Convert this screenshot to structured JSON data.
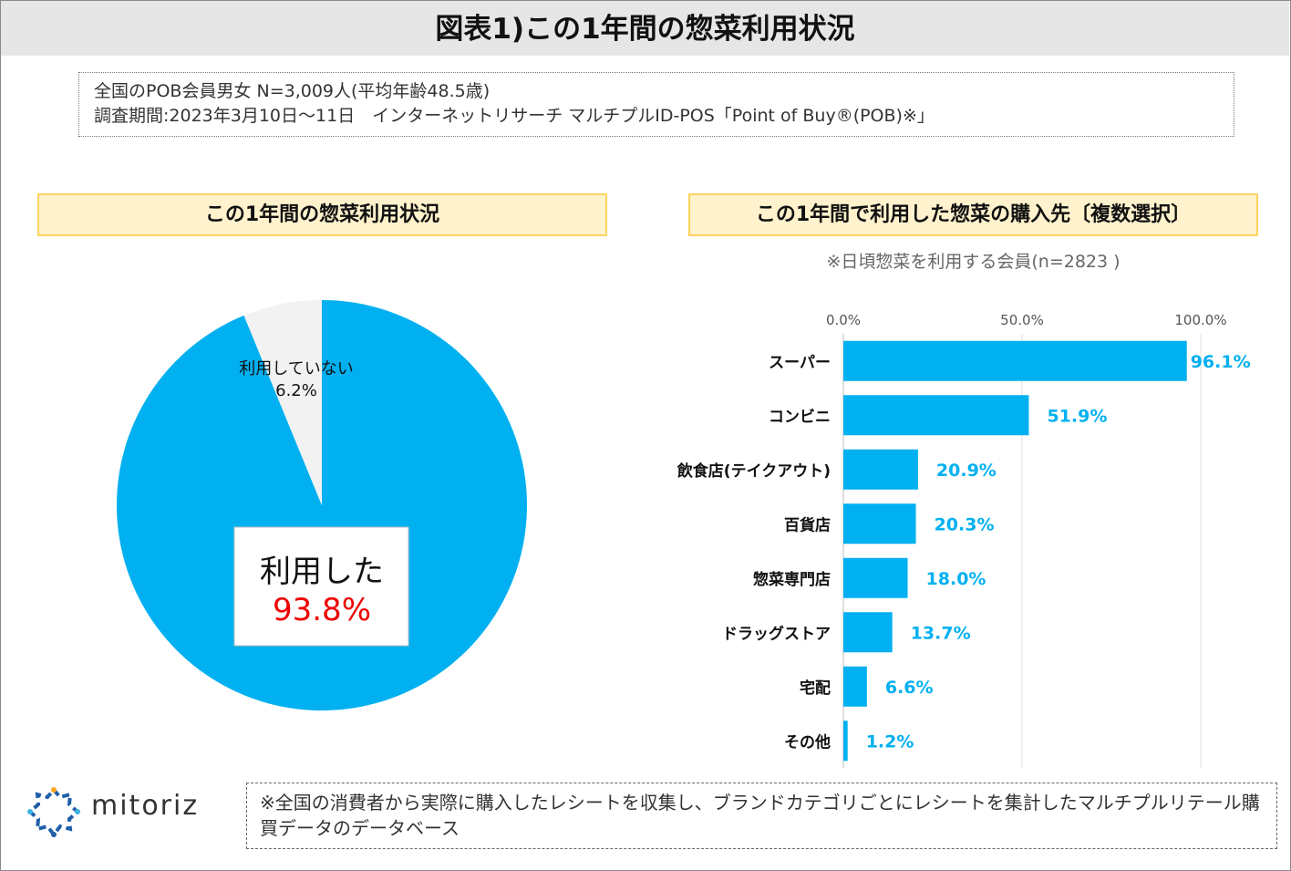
{
  "header": {
    "title": "図表1)この1年間の惣菜利用状況"
  },
  "info": {
    "line1": "全国のPOB会員男女 N=3,009人(平均年齢48.5歳)",
    "line2": "調査期間:2023年3月10日〜11日　インターネットリサーチ マルチプルID-POS「Point of Buy®(POB)※」"
  },
  "left_panel": {
    "heading": "この1年間の惣菜利用状況"
  },
  "right_panel": {
    "heading": "この1年間で利用した惣菜の購入先〔複数選択〕",
    "note": "※日頃惣菜を利用する会員(n=2823 )"
  },
  "colors": {
    "bar": "#00b0f0",
    "label": "#00b0f0",
    "highlight": "#ee0000",
    "pie_other": "#f2f2f2"
  },
  "chart_data": [
    {
      "type": "pie",
      "slices": [
        {
          "label": "利用した",
          "value": 93.8,
          "display": "93.8%"
        },
        {
          "label": "利用していない",
          "value": 6.2,
          "display": "6.2%"
        }
      ]
    },
    {
      "type": "bar",
      "orientation": "horizontal",
      "categories": [
        "スーパー",
        "コンビニ",
        "飲食店(テイクアウト)",
        "百貨店",
        "惣菜専門店",
        "ドラッグストア",
        "宅配",
        "その他"
      ],
      "values": [
        96.1,
        51.9,
        20.9,
        20.3,
        18.0,
        13.7,
        6.6,
        1.2
      ],
      "labels": [
        "96.1%",
        "51.9%",
        "20.9%",
        "20.3%",
        "18.0%",
        "13.7%",
        "6.6%",
        "1.2%"
      ],
      "xlim": [
        0,
        100
      ],
      "xticks": [
        "0.0%",
        "50.0%",
        "100.0%"
      ],
      "xtick_values": [
        0,
        50,
        100
      ]
    }
  ],
  "footer": {
    "logo": "mitoriz",
    "note": "※全国の消費者から実際に購入したレシートを収集し、ブランドカテゴリごとにレシートを集計したマルチプルリテール購買データのデータベース"
  }
}
